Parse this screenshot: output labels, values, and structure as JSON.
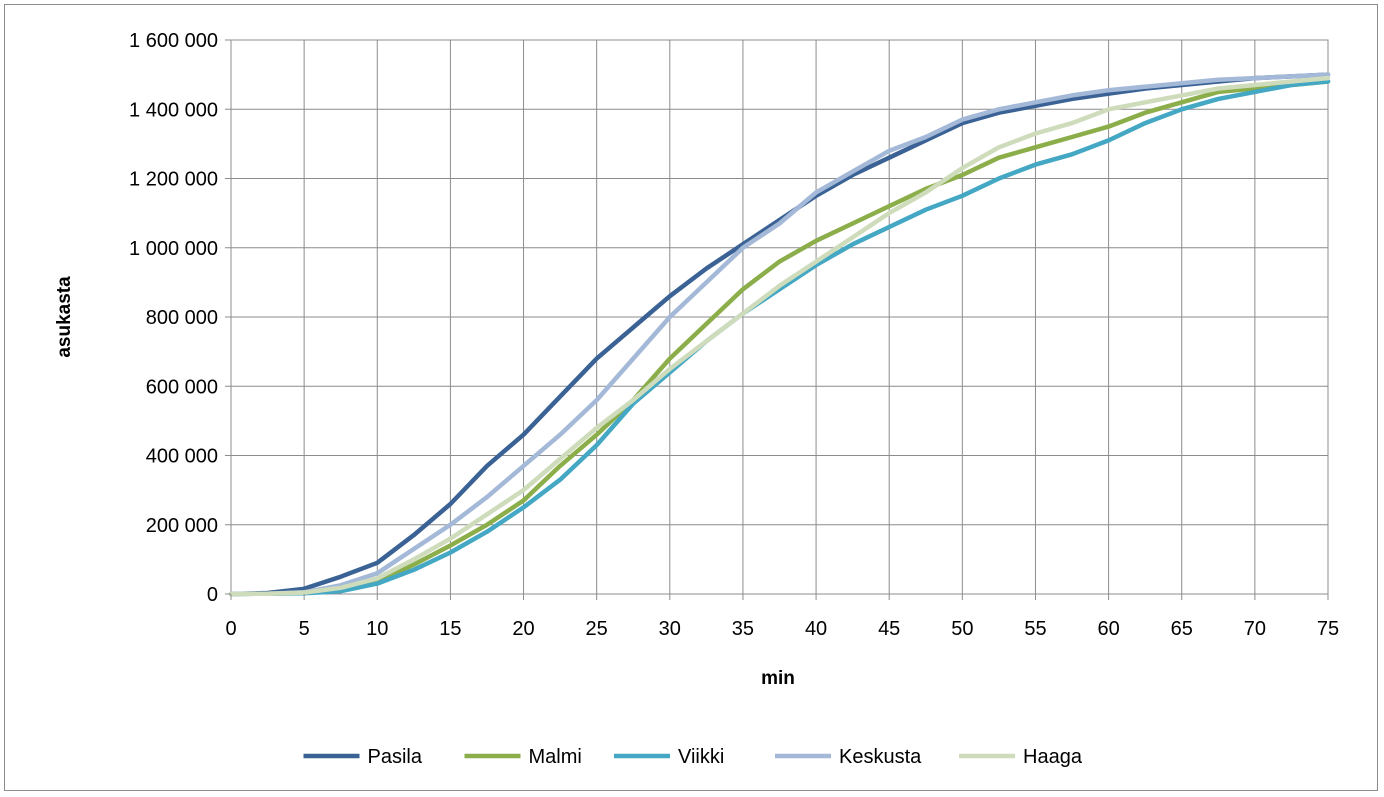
{
  "chart_data": {
    "type": "line",
    "xlabel": "min",
    "ylabel": "asukasta",
    "xlim": [
      0,
      75
    ],
    "ylim": [
      0,
      1600000
    ],
    "x_ticks": [
      0,
      5,
      10,
      15,
      20,
      25,
      30,
      35,
      40,
      45,
      50,
      55,
      60,
      65,
      70,
      75
    ],
    "y_ticks": [
      0,
      200000,
      400000,
      600000,
      800000,
      1000000,
      1200000,
      1400000,
      1600000
    ],
    "y_tick_labels": [
      "0",
      "200 000",
      "400 000",
      "600 000",
      "800 000",
      "1 000 000",
      "1 200 000",
      "1 400 000",
      "1 600 000"
    ],
    "grid": true,
    "legend_position": "bottom",
    "x": [
      0,
      2.5,
      5,
      7.5,
      10,
      12.5,
      15,
      17.5,
      20,
      22.5,
      25,
      27.5,
      30,
      32.5,
      35,
      37.5,
      40,
      42.5,
      45,
      47.5,
      50,
      52.5,
      55,
      57.5,
      60,
      62.5,
      65,
      67.5,
      70,
      72.5,
      75
    ],
    "series": [
      {
        "name": "Pasila",
        "color": "#3a6295",
        "values": [
          0,
          3000,
          15000,
          50000,
          90000,
          170000,
          260000,
          370000,
          460000,
          570000,
          680000,
          770000,
          860000,
          940000,
          1010000,
          1080000,
          1150000,
          1210000,
          1260000,
          1310000,
          1360000,
          1390000,
          1410000,
          1430000,
          1445000,
          1460000,
          1470000,
          1480000,
          1490000,
          1495000,
          1500000
        ]
      },
      {
        "name": "Malmi",
        "color": "#8cae4a",
        "values": [
          0,
          1000,
          3000,
          10000,
          35000,
          85000,
          140000,
          200000,
          270000,
          370000,
          460000,
          560000,
          680000,
          780000,
          880000,
          960000,
          1020000,
          1070000,
          1120000,
          1170000,
          1210000,
          1260000,
          1290000,
          1320000,
          1350000,
          1390000,
          1420000,
          1450000,
          1460000,
          1470000,
          1480000
        ]
      },
      {
        "name": "Viikki",
        "color": "#44a8c4",
        "values": [
          0,
          1000,
          2000,
          8000,
          30000,
          70000,
          120000,
          180000,
          250000,
          330000,
          430000,
          550000,
          640000,
          730000,
          810000,
          880000,
          950000,
          1010000,
          1060000,
          1110000,
          1150000,
          1200000,
          1240000,
          1270000,
          1310000,
          1360000,
          1400000,
          1430000,
          1450000,
          1470000,
          1480000
        ]
      },
      {
        "name": "Keskusta",
        "color": "#a4b8d8",
        "values": [
          0,
          1000,
          5000,
          25000,
          60000,
          130000,
          200000,
          280000,
          370000,
          460000,
          560000,
          680000,
          800000,
          900000,
          1000000,
          1070000,
          1160000,
          1220000,
          1280000,
          1320000,
          1370000,
          1400000,
          1420000,
          1440000,
          1455000,
          1465000,
          1475000,
          1485000,
          1490000,
          1495000,
          1500000
        ]
      },
      {
        "name": "Haaga",
        "color": "#cfdcbc",
        "values": [
          0,
          1000,
          4000,
          18000,
          45000,
          100000,
          160000,
          230000,
          300000,
          390000,
          480000,
          560000,
          650000,
          730000,
          810000,
          890000,
          960000,
          1030000,
          1100000,
          1160000,
          1230000,
          1290000,
          1330000,
          1360000,
          1400000,
          1420000,
          1440000,
          1460000,
          1470000,
          1480000,
          1490000
        ]
      }
    ]
  }
}
